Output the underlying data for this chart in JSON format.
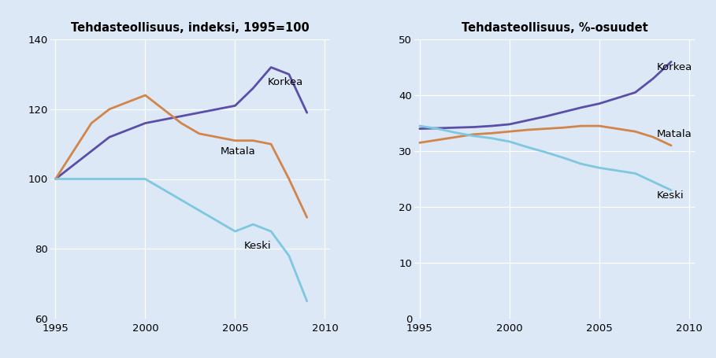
{
  "title1": "Tehdasteollisuus, indeksi, 1995=100",
  "title2": "Tehdasteollisuus, %-osuudet",
  "years_left": [
    1995,
    1996,
    1997,
    1998,
    1999,
    2000,
    2001,
    2002,
    2003,
    2004,
    2005,
    2006,
    2007,
    2008,
    2009
  ],
  "years_right": [
    1995,
    1996,
    1997,
    1998,
    1999,
    2000,
    2001,
    2002,
    2003,
    2004,
    2005,
    2006,
    2007,
    2008,
    2009
  ],
  "left": {
    "korkea": [
      100,
      104,
      108,
      112,
      114,
      116,
      117,
      118,
      119,
      120,
      121,
      126,
      132,
      130,
      119
    ],
    "matala": [
      100,
      108,
      116,
      120,
      122,
      124,
      120,
      116,
      113,
      112,
      111,
      111,
      110,
      100,
      89
    ],
    "keski": [
      100,
      100,
      100,
      100,
      100,
      100,
      97,
      94,
      91,
      88,
      85,
      87,
      85,
      78,
      65
    ]
  },
  "right": {
    "korkea": [
      34.0,
      34.1,
      34.2,
      34.3,
      34.5,
      34.8,
      35.5,
      36.2,
      37.0,
      37.8,
      38.5,
      39.5,
      40.5,
      43.0,
      46.0
    ],
    "matala": [
      31.5,
      32.0,
      32.5,
      33.0,
      33.2,
      33.5,
      33.8,
      34.0,
      34.2,
      34.5,
      34.5,
      34.0,
      33.5,
      32.5,
      31.0
    ],
    "keski": [
      34.5,
      34.0,
      33.3,
      32.7,
      32.3,
      31.7,
      30.7,
      29.8,
      28.8,
      27.7,
      27.0,
      26.5,
      26.0,
      24.5,
      23.0
    ]
  },
  "color_korkea": "#5b4ea8",
  "color_matala": "#d2854a",
  "color_keski": "#7dc8e0",
  "bg_color": "#dce8f5",
  "plot_bg_color": "#dce8f5",
  "line_width": 2.0,
  "left_ylim": [
    60,
    140
  ],
  "left_yticks": [
    60,
    80,
    100,
    120,
    140
  ],
  "right_ylim": [
    0,
    50
  ],
  "right_yticks": [
    0,
    10,
    20,
    30,
    40,
    50
  ],
  "xlim": [
    1994.7,
    2010.3
  ],
  "xticks": [
    1995,
    2000,
    2005,
    2010
  ],
  "label_fontsize": 9.5,
  "title_fontsize": 10.5
}
